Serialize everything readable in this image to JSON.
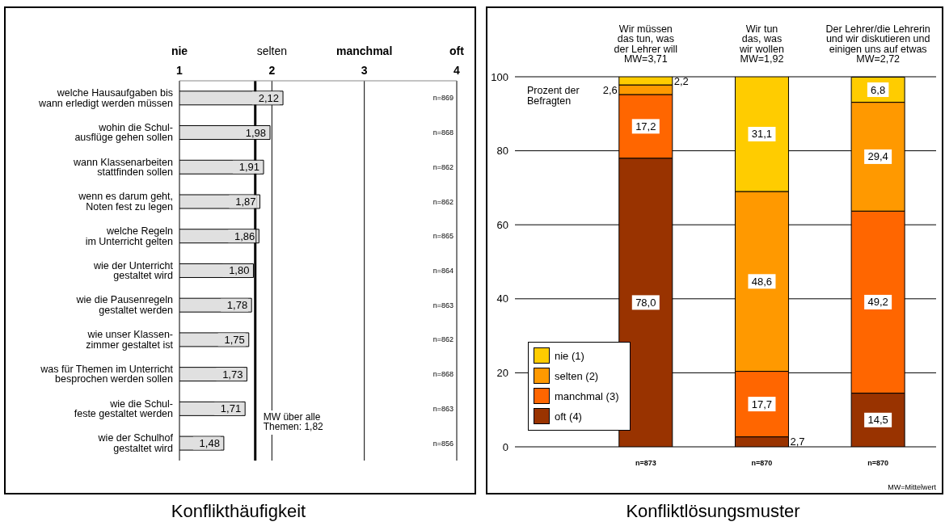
{
  "chart_data": [
    {
      "type": "bar",
      "orientation": "horizontal",
      "title": "Konflikthäufigkeit",
      "categories": [
        "welche Hausaufgaben bis\nwann erledigt werden müssen",
        "wohin die Schul-\nausflüge gehen sollen",
        "wann Klassenarbeiten\nstattfinden sollen",
        "wenn es darum geht,\nNoten fest zu legen",
        "welche Regeln\nim Unterricht gelten",
        "wie der Unterricht\ngestaltet wird",
        "wie die Pausenregeln\ngestaltet werden",
        "wie unser Klassen-\nzimmer gestaltet ist",
        "was für Themen im Unterricht\nbesprochen werden sollen",
        "wie die Schul-\nfeste gestaltet werden",
        "wie der Schulhof\ngestaltet wird"
      ],
      "values": [
        2.12,
        1.98,
        1.91,
        1.87,
        1.86,
        1.8,
        1.78,
        1.75,
        1.73,
        1.71,
        1.48
      ],
      "value_labels": [
        "2,12",
        "1,98",
        "1,91",
        "1,87",
        "1,86",
        "1,80",
        "1,78",
        "1,75",
        "1,73",
        "1,71",
        "1,48"
      ],
      "color": "#e0e0e0",
      "xlim": [
        1,
        4
      ],
      "xticks": [
        1,
        2,
        3,
        4
      ],
      "grid": "x",
      "ref_lines": [
        {
          "axis": "x",
          "value": 1.82,
          "label": "MW über alle\nThemen: 1,82"
        }
      ],
      "annotations": [
        "nie",
        "selten",
        "manchmal",
        "oft",
        "n=869",
        "n=868",
        "n=862",
        "n=862",
        "n=865",
        "n=864",
        "n=863",
        "n=862",
        "n=868",
        "n=863",
        "n=856"
      ]
    },
    {
      "type": "bar",
      "stacked": true,
      "title": "Konfliktlösungsmuster",
      "ylabel": "Prozent der\nBefragten",
      "categories": [
        "Wir müssen\ndas tun, was\nder Lehrer will\nMW=3,71",
        "Wir tun\ndas, was\nwir wollen\nMW=1,92",
        "Der Lehrer/die Lehrerin\nund wir diskutieren und\neinigen uns auf etwas\nMW=2,72"
      ],
      "series": [
        {
          "name": "oft (4)",
          "color": "#993300",
          "values": [
            78.0,
            2.7,
            14.5
          ],
          "value_labels": [
            "78,0",
            "2,7",
            "14,5"
          ]
        },
        {
          "name": "manchmal (3)",
          "color": "#ff6600",
          "values": [
            17.2,
            17.7,
            49.2
          ],
          "value_labels": [
            "17,2",
            "17,7",
            "49,2"
          ]
        },
        {
          "name": "selten (2)",
          "color": "#ff9900",
          "values": [
            2.6,
            48.6,
            29.4
          ],
          "value_labels": [
            "2,6",
            "48,6",
            "29,4"
          ]
        },
        {
          "name": "nie (1)",
          "color": "#ffcc00",
          "values": [
            2.2,
            31.1,
            6.8
          ],
          "value_labels": [
            "2,2",
            "31,1",
            "6,8"
          ]
        }
      ],
      "ylim": [
        0,
        100
      ],
      "yticks": [
        0,
        20,
        40,
        60,
        80,
        100
      ],
      "grid": "y",
      "legend": "bottom left",
      "annotations": [
        "n=873",
        "n=870",
        "n=870",
        "MW=Mittelwert"
      ]
    }
  ]
}
